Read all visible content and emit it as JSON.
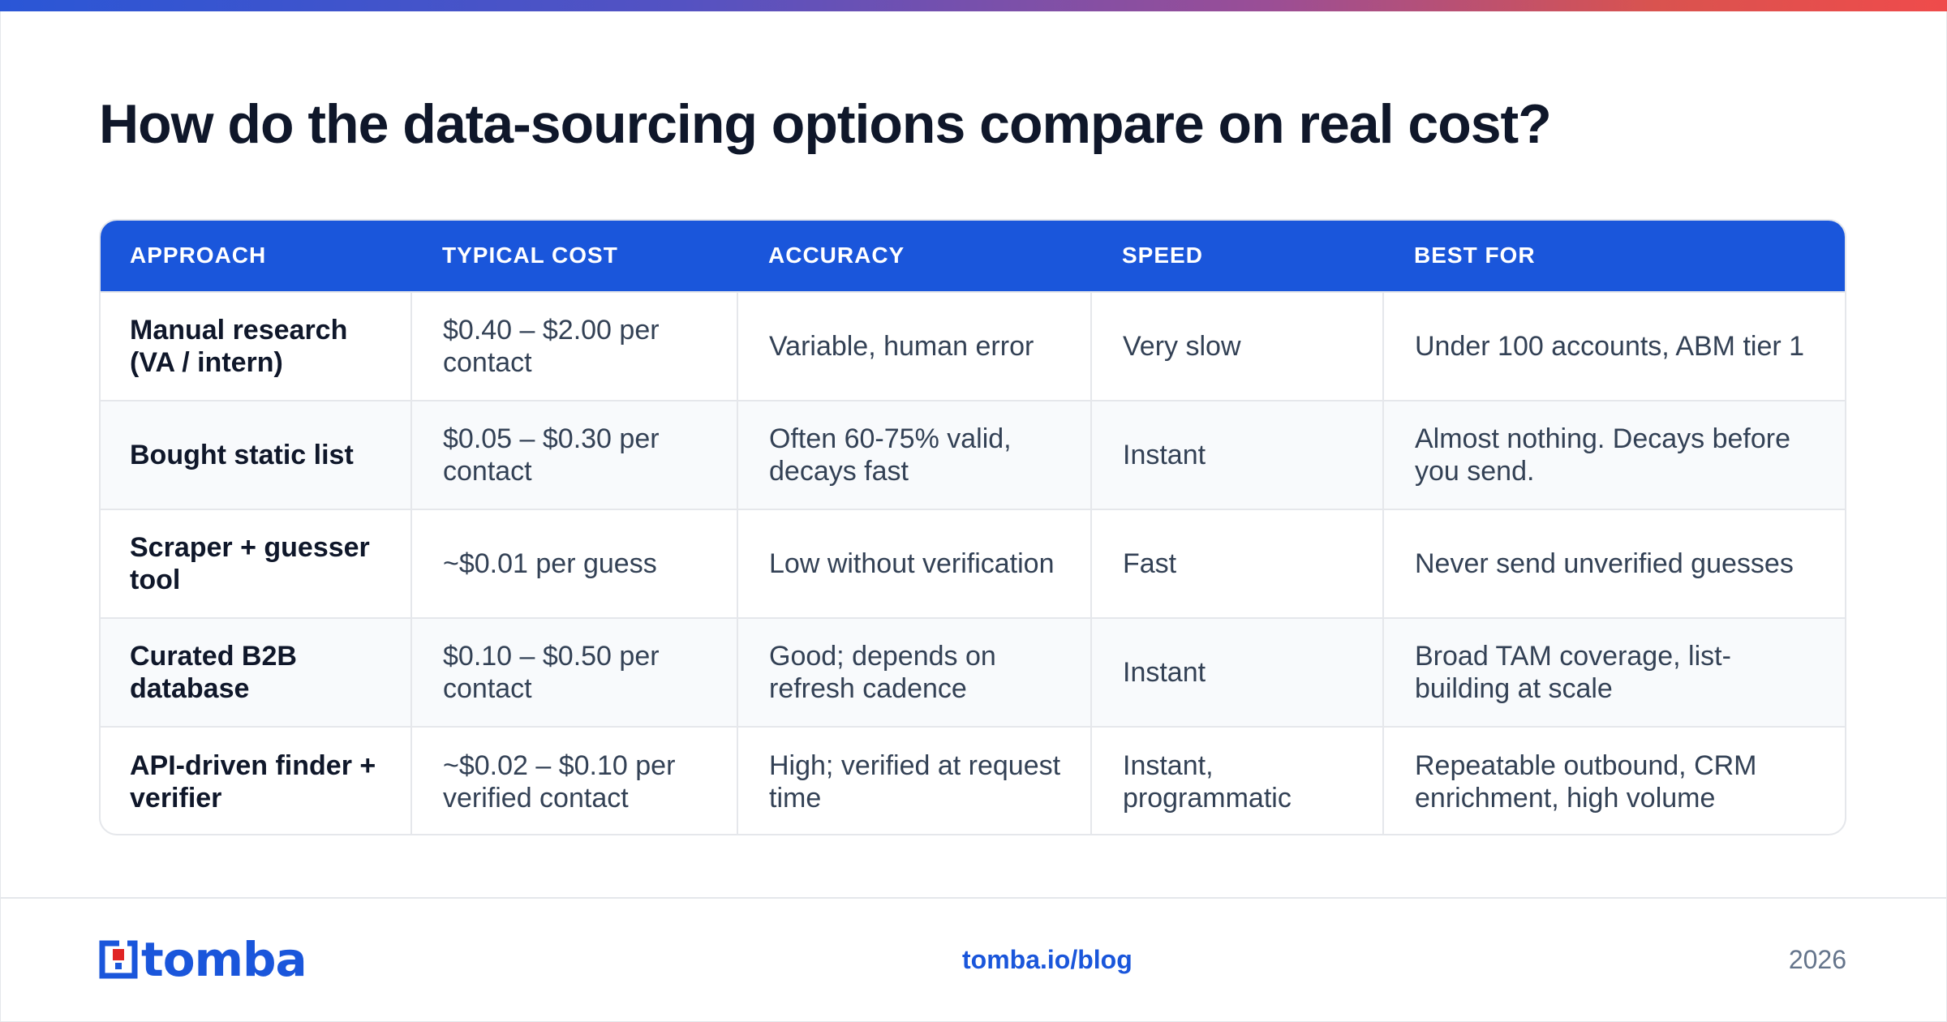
{
  "title": "How do the data-sourcing options compare on real cost?",
  "table": {
    "headers": [
      "APPROACH",
      "TYPICAL COST",
      "ACCURACY",
      "SPEED",
      "BEST FOR"
    ],
    "rows": [
      [
        "Manual research (VA / intern)",
        "$0.40 – $2.00 per contact",
        "Variable, human error",
        "Very slow",
        "Under 100 accounts, ABM tier 1"
      ],
      [
        "Bought static list",
        "$0.05 – $0.30 per contact",
        "Often 60-75% valid, decays fast",
        "Instant",
        "Almost nothing. Decays before you send."
      ],
      [
        "Scraper + guesser tool",
        "~$0.01 per guess",
        "Low without verification",
        "Fast",
        "Never send unverified guesses"
      ],
      [
        "Curated B2B database",
        "$0.10 – $0.50 per contact",
        "Good; depends on refresh cadence",
        "Instant",
        "Broad TAM coverage, list-building at scale"
      ],
      [
        "API-driven finder + verifier",
        "~$0.02 – $0.10 per verified contact",
        "High; verified at request time",
        "Instant, programmatic",
        "Repeatable outbound, CRM enrichment, high volume"
      ]
    ]
  },
  "footer": {
    "logo_text": "tomba",
    "link": "tomba.io/blog",
    "year": "2026"
  },
  "colors": {
    "brand_blue": "#1a56db",
    "logo_red": "#e02424",
    "text_dark": "#0f172a",
    "text_body": "#334155",
    "border": "#e5e7eb",
    "row_alt": "#f8fafc"
  },
  "icons": {
    "logo_mark": "tomba-logo-icon"
  }
}
